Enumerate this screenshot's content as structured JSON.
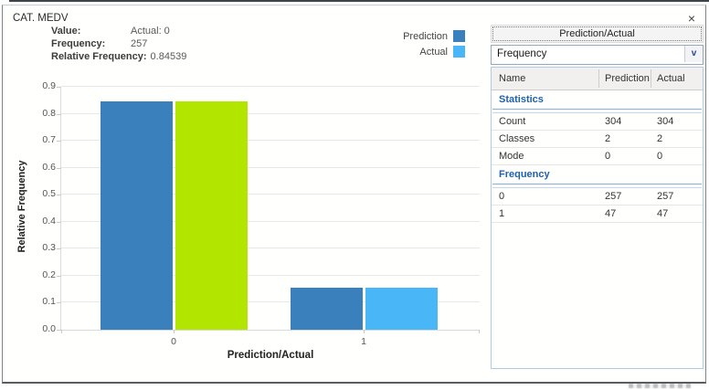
{
  "window": {
    "title": "CAT. MEDV",
    "close_icon": "×"
  },
  "tooltip": {
    "rows": [
      {
        "label": "Value:",
        "value": "Actual: 0"
      },
      {
        "label": "Frequency:",
        "value": "257"
      },
      {
        "label": "Relative Frequency:",
        "value": "0.84539"
      }
    ]
  },
  "legend": {
    "items": [
      {
        "label": "Prediction",
        "color": "#3a80bd"
      },
      {
        "label": "Actual",
        "color": "#49b7f7"
      }
    ]
  },
  "chart_data": {
    "type": "bar",
    "categories": [
      "0",
      "1"
    ],
    "series": [
      {
        "name": "Prediction",
        "values": [
          0.84539,
          0.15461
        ],
        "color": "#3a80bd"
      },
      {
        "name": "Actual",
        "values": [
          0.84539,
          0.15461
        ],
        "color": "#49b7f7"
      }
    ],
    "highlight": {
      "series": "Actual",
      "category_index": 0,
      "color": "#b2e600"
    },
    "title": "",
    "xlabel": "Prediction/Actual",
    "ylabel": "Relative Frequency",
    "ylim": [
      0,
      0.9
    ],
    "ytick_step": 0.1,
    "grid": true,
    "legend_position": "top-right"
  },
  "panel": {
    "header_button": "Prediction/Actual",
    "dropdown": {
      "value": "Frequency",
      "arrow_icon": "v"
    },
    "table": {
      "columns": [
        "Name",
        "Prediction",
        "Actual"
      ],
      "groups": [
        {
          "title": "Statistics",
          "rows": [
            [
              "Count",
              "304",
              "304"
            ],
            [
              "Classes",
              "2",
              "2"
            ],
            [
              "Mode",
              "0",
              "0"
            ]
          ]
        },
        {
          "title": "Frequency",
          "rows": [
            [
              "0",
              "257",
              "257"
            ],
            [
              "1",
              "47",
              "47"
            ]
          ]
        }
      ]
    }
  }
}
